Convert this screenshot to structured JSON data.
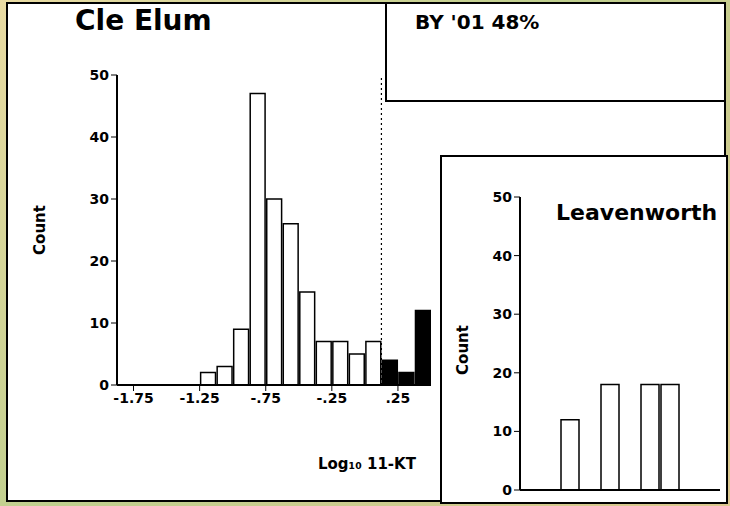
{
  "chart_data": [
    {
      "type": "histogram",
      "title": "Cle Elum",
      "annotation": "BY '01 48%",
      "x_label": "Log₁₀ 11-KT",
      "y_label": "Count",
      "bins": [
        -1.25,
        -1.125,
        -1.0,
        -0.875,
        -0.75,
        -0.625,
        -0.5,
        -0.375,
        -0.25,
        -0.125,
        0.0,
        0.125,
        0.25,
        0.375,
        0.5
      ],
      "counts": [
        2,
        3,
        9,
        47,
        30,
        26,
        15,
        7,
        7,
        5,
        7,
        4,
        2,
        12
      ],
      "colors": [
        "#ffffff",
        "#ffffff",
        "#ffffff",
        "#ffffff",
        "#ffffff",
        "#ffffff",
        "#ffffff",
        "#ffffff",
        "#ffffff",
        "#ffffff",
        "#ffffff",
        "#000000",
        "#000000",
        "#000000"
      ],
      "threshold": 0.125,
      "xlim": [
        -1.875,
        0.5
      ],
      "xticks": [
        -1.75,
        -1.25,
        {
          "value": -0.75,
          "label": "-.75"
        },
        {
          "value": -0.25,
          "label": "-.25"
        },
        {
          "value": 0.25,
          "label": ".25"
        }
      ],
      "ylim": [
        0,
        50
      ],
      "yticks": [
        0,
        10,
        20,
        30,
        40,
        50
      ]
    },
    {
      "type": "histogram",
      "title": "Leavenworth",
      "y_label": "Count",
      "bins": [
        -1.8,
        -1.7,
        -1.6,
        -1.5,
        -1.4,
        -1.3,
        -1.2
      ],
      "counts": [
        12,
        0,
        18,
        0,
        18,
        18
      ],
      "color": "#ffffff",
      "xlim": [
        -2.0,
        -1.0
      ],
      "ylim": [
        0,
        50
      ],
      "yticks": [
        0,
        10,
        20,
        30,
        40,
        50
      ],
      "tick_labels": "y"
    }
  ]
}
